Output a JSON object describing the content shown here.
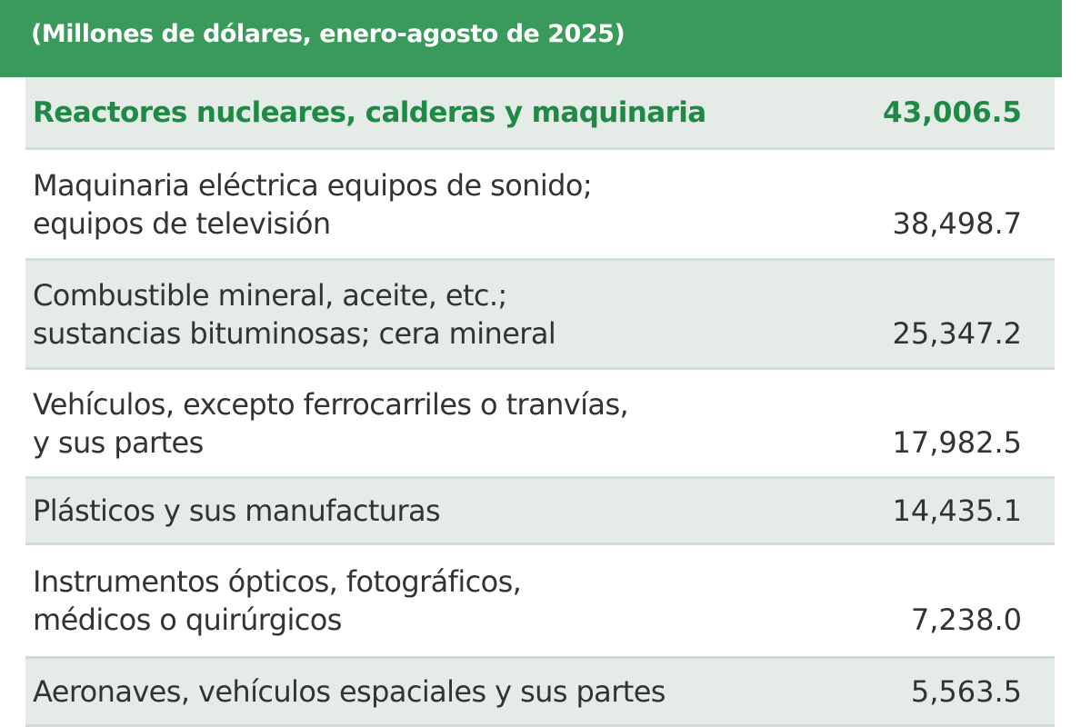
{
  "header": {
    "subtitle": "(Millones de dólares, enero-agosto de 2025)"
  },
  "table": {
    "rows": [
      {
        "label": [
          "Reactores nucleares, calderas y maquinaria"
        ],
        "value": "43,006.5"
      },
      {
        "label": [
          "Maquinaria eléctrica equipos de sonido;",
          "equipos de televisión"
        ],
        "value": "38,498.7"
      },
      {
        "label": [
          "Combustible mineral, aceite, etc.;",
          "sustancias bituminosas; cera mineral"
        ],
        "value": "25,347.2"
      },
      {
        "label": [
          "Vehículos, excepto ferrocarriles o tranvías,",
          "y sus partes"
        ],
        "value": "17,982.5"
      },
      {
        "label": [
          "Plásticos y sus manufacturas"
        ],
        "value": "14,435.1"
      },
      {
        "label": [
          "Instrumentos ópticos, fotográficos,",
          "médicos o quirúrgicos"
        ],
        "value": "7,238.0"
      },
      {
        "label": [
          "Aeronaves, vehículos espaciales y sus partes"
        ],
        "value": "5,563.5"
      }
    ]
  }
}
